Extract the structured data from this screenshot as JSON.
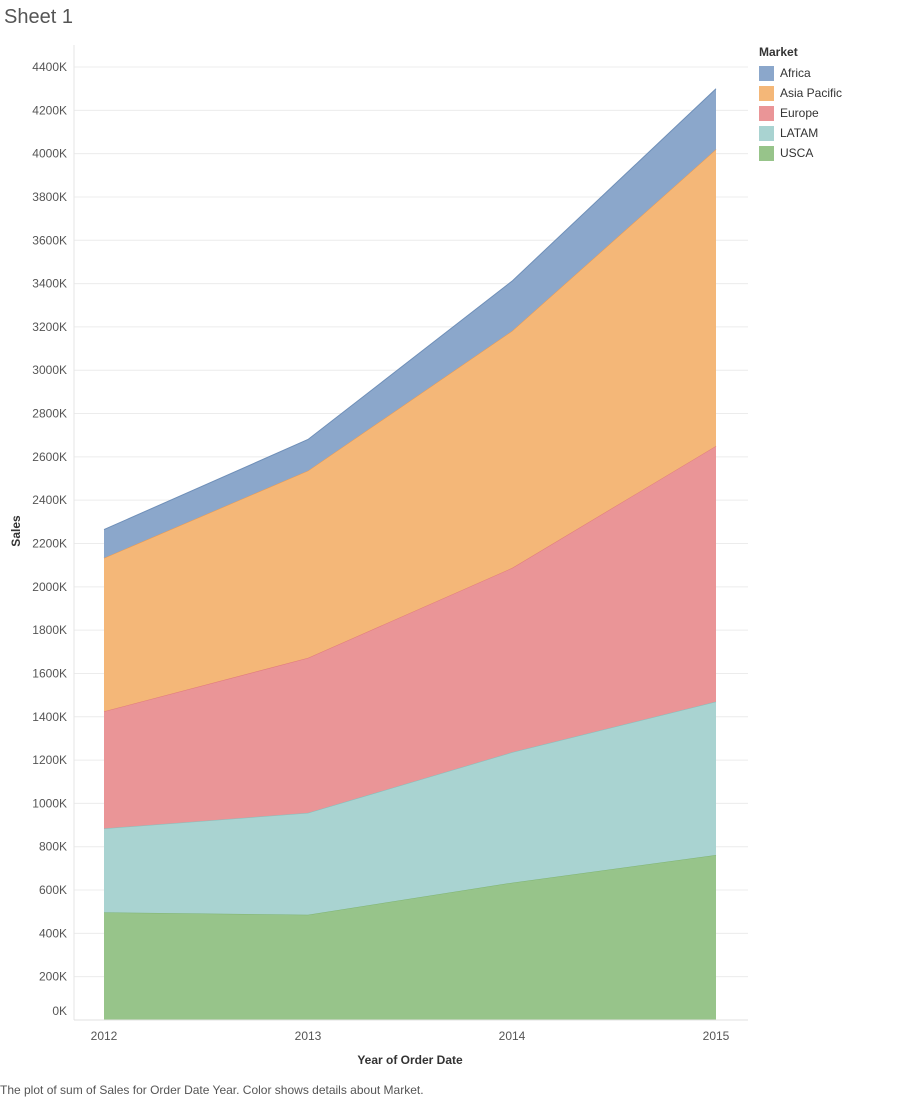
{
  "sheet_title": "Sheet 1",
  "caption": "The plot of sum of Sales for Order Date Year.  Color shows details about Market.",
  "colors": {
    "Africa": "#8ba7cb",
    "Asia Pacific": "#f4b778",
    "Europe": "#ea9597",
    "LATAM": "#a9d3d1",
    "USCA": "#97c48a"
  },
  "line_colors": {
    "Africa": "#6f8fb8",
    "Asia Pacific": "#ee9a4e",
    "Europe": "#e07a7c",
    "LATAM": "#86bfbb",
    "USCA": "#7fb472"
  },
  "chart_data": {
    "type": "area",
    "stacked": true,
    "xlabel": "Year of Order Date",
    "ylabel": "Sales",
    "x": [
      "2012",
      "2013",
      "2014",
      "2015"
    ],
    "ylim": [
      0,
      4400000
    ],
    "yticks": [
      "0K",
      "200K",
      "400K",
      "600K",
      "800K",
      "1000K",
      "1200K",
      "1400K",
      "1600K",
      "1800K",
      "2000K",
      "2200K",
      "2400K",
      "2600K",
      "2800K",
      "3000K",
      "3200K",
      "3400K",
      "3600K",
      "3800K",
      "4000K",
      "4200K",
      "4400K"
    ],
    "legend_title": "Market",
    "legend_position": "right",
    "series": [
      {
        "name": "USCA",
        "values": [
          497000,
          486000,
          634000,
          762000
        ]
      },
      {
        "name": "LATAM",
        "values": [
          387000,
          470000,
          602000,
          708000
        ]
      },
      {
        "name": "Europe",
        "values": [
          541000,
          716000,
          851000,
          1180000
        ]
      },
      {
        "name": "Asia Pacific",
        "values": [
          708000,
          864000,
          1094000,
          1370000
        ]
      },
      {
        "name": "Africa",
        "values": [
          131000,
          144000,
          230000,
          280000
        ]
      }
    ],
    "legend": [
      "Africa",
      "Asia Pacific",
      "Europe",
      "LATAM",
      "USCA"
    ]
  }
}
